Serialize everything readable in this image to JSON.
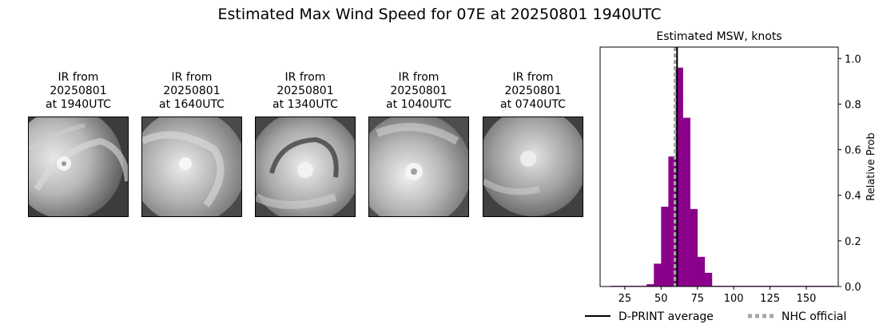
{
  "title": "Estimated Max Wind Speed for 07E at 20250801 1940UTC",
  "panels": [
    {
      "line1": "IR from",
      "line2": "20250801",
      "line3": "at 1940UTC",
      "icon": "satellite-ir-image"
    },
    {
      "line1": "IR from",
      "line2": "20250801",
      "line3": "at 1640UTC",
      "icon": "satellite-ir-image"
    },
    {
      "line1": "IR from",
      "line2": "20250801",
      "line3": "at 1340UTC",
      "icon": "satellite-ir-image"
    },
    {
      "line1": "IR from",
      "line2": "20250801",
      "line3": "at 1040UTC",
      "icon": "satellite-ir-image"
    },
    {
      "line1": "IR from",
      "line2": "20250801",
      "line3": "at 0740UTC",
      "icon": "satellite-ir-image"
    }
  ],
  "chart_data": {
    "type": "bar",
    "title": "Estimated MSW, knots",
    "xlabel": "",
    "ylabel": "Relative Prob",
    "xlim": [
      8,
      172
    ],
    "ylim": [
      0,
      1.05
    ],
    "xticks": [
      25,
      50,
      75,
      100,
      125,
      150
    ],
    "yticks": [
      0.0,
      0.2,
      0.4,
      0.6,
      0.8,
      1.0
    ],
    "bin_width": 5,
    "bin_starts": [
      15,
      20,
      25,
      30,
      35,
      40,
      45,
      50,
      55,
      60,
      65,
      70,
      75,
      80,
      85,
      90,
      95,
      100,
      105,
      110,
      115,
      120,
      125,
      130,
      135,
      140,
      145,
      150,
      155,
      160,
      165
    ],
    "values": [
      0.003,
      0.003,
      0.003,
      0.003,
      0.003,
      0.01,
      0.1,
      0.35,
      0.57,
      0.96,
      0.74,
      0.34,
      0.13,
      0.06,
      0.003,
      0.003,
      0.003,
      0.003,
      0.003,
      0.003,
      0.003,
      0.003,
      0.003,
      0.003,
      0.003,
      0.003,
      0.003,
      0.003,
      0.003,
      0.003,
      0.003
    ],
    "bar_color": "#8b008b",
    "dprint_average": 61,
    "dprint_color": "#000000",
    "nhc_official": 60,
    "nhc_color": "#a6a6a6",
    "legend": [
      {
        "label": "D-PRINT average",
        "style": "solid",
        "color": "#000000"
      },
      {
        "label": "NHC official",
        "style": "dotted",
        "color": "#a6a6a6"
      }
    ]
  }
}
